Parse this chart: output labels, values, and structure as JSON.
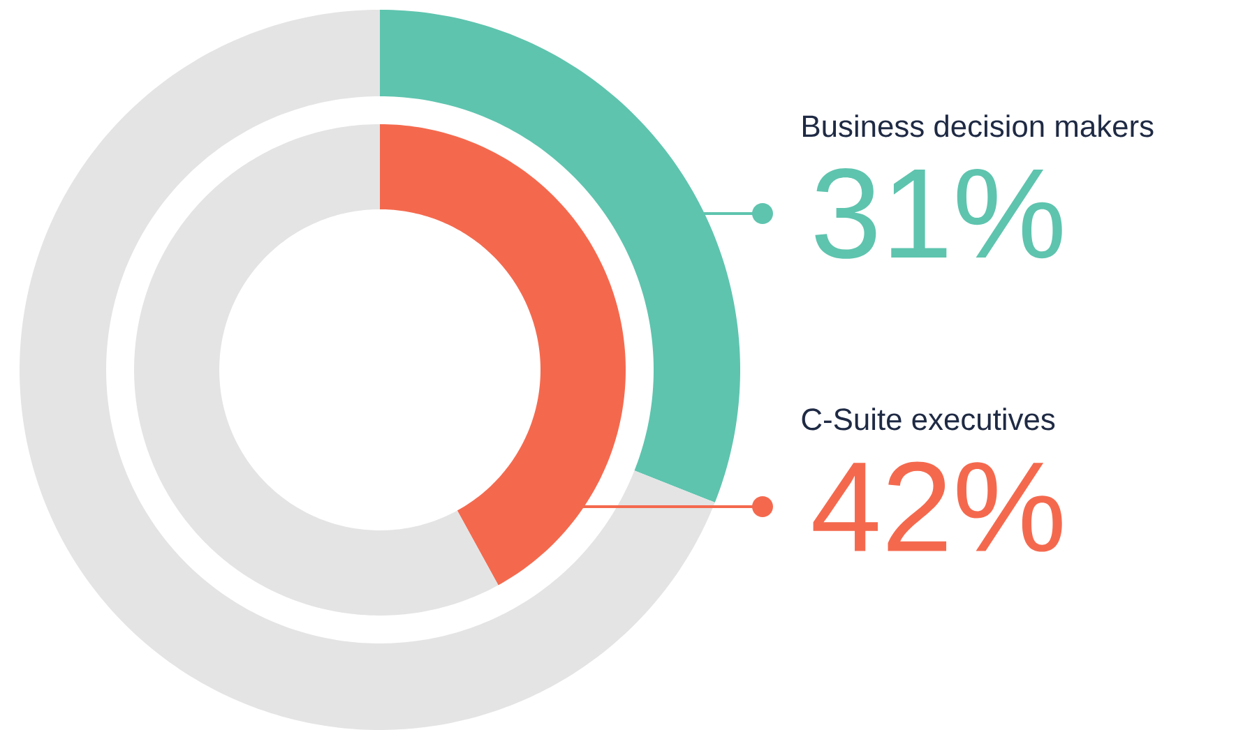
{
  "chart_data": [
    {
      "type": "donut",
      "categories": [
        "Business decision makers",
        null
      ],
      "values": [
        31,
        69
      ],
      "colors": [
        "#5ec4ae",
        "#e4e4e4"
      ],
      "value_labels": [
        "31%",
        null
      ]
    },
    {
      "type": "donut",
      "categories": [
        "C-Suite executives",
        null
      ],
      "values": [
        42,
        58
      ],
      "colors": [
        "#f4694e",
        "#e4e4e4"
      ],
      "value_labels": [
        "42%",
        null
      ]
    }
  ]
}
